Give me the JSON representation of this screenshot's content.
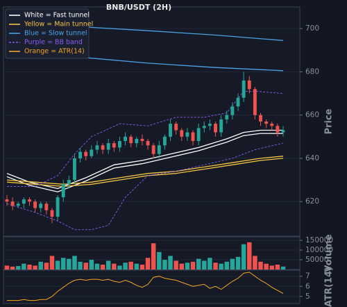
{
  "chart_data": [
    {
      "type": "candlestick",
      "title": "BNB/USDT (2H)",
      "ylabel": "Price",
      "ylim": [
        604,
        710
      ],
      "yticks": [
        620,
        640,
        660,
        680,
        700
      ],
      "grid": true,
      "up_color": "#26a69a",
      "down_color": "#ef5350",
      "legend": "upper left",
      "open": [
        621,
        620,
        618,
        619,
        621,
        620,
        617,
        619,
        616,
        613,
        622,
        628,
        630,
        640,
        643,
        641,
        644,
        646,
        644,
        647,
        645,
        648,
        650,
        647,
        649,
        648,
        646,
        642,
        646,
        650,
        656,
        653,
        650,
        652,
        648,
        654,
        655,
        656,
        652,
        658,
        660,
        664,
        668,
        676,
        672,
        660,
        657,
        656,
        655,
        652
      ],
      "high": [
        623,
        622,
        620,
        622,
        622,
        621,
        620,
        620,
        617,
        623,
        630,
        632,
        642,
        645,
        644,
        646,
        648,
        647,
        649,
        648,
        650,
        652,
        651,
        650,
        651,
        649,
        647,
        648,
        651,
        658,
        657,
        654,
        654,
        653,
        656,
        657,
        658,
        657,
        660,
        662,
        666,
        670,
        680,
        678,
        673,
        661,
        658,
        657,
        656,
        655
      ],
      "low": [
        618,
        616,
        617,
        617,
        618,
        615,
        615,
        614,
        610,
        611,
        620,
        626,
        628,
        638,
        639,
        640,
        642,
        642,
        642,
        643,
        643,
        646,
        645,
        645,
        646,
        644,
        640,
        640,
        644,
        648,
        651,
        648,
        648,
        646,
        646,
        652,
        653,
        650,
        650,
        656,
        658,
        662,
        666,
        670,
        658,
        655,
        654,
        653,
        650,
        650
      ],
      "close": [
        620,
        618,
        619,
        621,
        620,
        617,
        619,
        616,
        613,
        622,
        628,
        630,
        640,
        643,
        641,
        644,
        646,
        644,
        647,
        645,
        648,
        650,
        647,
        649,
        648,
        646,
        642,
        646,
        650,
        656,
        653,
        650,
        652,
        648,
        654,
        655,
        656,
        652,
        658,
        660,
        664,
        668,
        676,
        672,
        660,
        657,
        656,
        655,
        652,
        653
      ],
      "overlays": [
        {
          "name": "White = Fast tunnel",
          "color": "#ffffff",
          "dashed": false,
          "lines": [
            {
              "x": [
                0,
                4,
                9,
                14,
                19,
                24,
                29,
                34,
                39,
                42,
                45,
                49
              ],
              "values": [
                633,
                629,
                626,
                631,
                637,
                639,
                642,
                645,
                649,
                652,
                653,
                653
              ]
            },
            {
              "x": [
                0,
                4,
                9,
                14,
                19,
                24,
                29,
                34,
                39,
                42,
                45,
                49
              ],
              "values": [
                631.5,
                627.5,
                624.5,
                629.5,
                635.5,
                637.5,
                640.5,
                643.5,
                647.5,
                650.5,
                651.5,
                651.5
              ]
            }
          ]
        },
        {
          "name": "Yellow = Main tunnel",
          "color": "#f5c542",
          "dashed": false,
          "lines": [
            {
              "x": [
                0,
                5,
                10,
                15,
                20,
                25,
                30,
                35,
                40,
                45,
                49
              ],
              "values": [
                630,
                629,
                628,
                629,
                631,
                633,
                634,
                636,
                638,
                640,
                641
              ]
            },
            {
              "x": [
                0,
                5,
                10,
                15,
                20,
                25,
                30,
                35,
                40,
                45,
                49
              ],
              "values": [
                629,
                628,
                627,
                628,
                630,
                632,
                633,
                635,
                637,
                639,
                640
              ]
            }
          ]
        },
        {
          "name": "Blue = Slow tunnel",
          "color": "#4aa3e8",
          "dashed": false,
          "lines": [
            {
              "x": [
                0,
                12,
                25,
                37,
                49
              ],
              "values": [
                703.5,
                701,
                699,
                697,
                694.5
              ]
            },
            {
              "x": [
                0,
                12,
                25,
                37,
                49
              ],
              "values": [
                690,
                687,
                684,
                682,
                680.5
              ]
            }
          ]
        },
        {
          "name": "Purple = BB band",
          "color": "#8a5cf0",
          "dashed": true,
          "lines": [
            {
              "x": [
                0,
                5,
                9,
                12,
                15,
                20,
                25,
                30,
                35,
                39,
                42,
                44,
                49
              ],
              "values": [
                627,
                627,
                632,
                642,
                650,
                656,
                655,
                659,
                659,
                661,
                671,
                671,
                670
              ]
            },
            {
              "x": [
                0,
                5,
                9,
                12,
                15,
                18,
                21,
                25,
                30,
                35,
                40,
                44,
                49
              ],
              "values": [
                619,
                615,
                611,
                607,
                607,
                609,
                622,
                632,
                634,
                637,
                640,
                644,
                647
              ]
            }
          ]
        }
      ]
    },
    {
      "type": "bar",
      "ylabel": "Volume",
      "ylim": [
        0,
        168000
      ],
      "yticks": [
        50000,
        100000,
        150000
      ],
      "grid": true,
      "values": [
        20000,
        15000,
        18000,
        30000,
        25000,
        20000,
        40000,
        35000,
        70000,
        45000,
        60000,
        55000,
        70000,
        40000,
        35000,
        50000,
        30000,
        25000,
        45000,
        30000,
        20000,
        35000,
        40000,
        30000,
        25000,
        60000,
        135000,
        90000,
        50000,
        70000,
        45000,
        30000,
        35000,
        40000,
        55000,
        45000,
        60000,
        35000,
        30000,
        40000,
        55000,
        65000,
        130000,
        140000,
        70000,
        40000,
        30000,
        20000,
        25000,
        15000
      ]
    },
    {
      "type": "line",
      "ylabel": "ATR(14)",
      "ylim": [
        4.3,
        7.6
      ],
      "yticks": [
        5,
        6,
        7
      ],
      "grid": true,
      "series": [
        {
          "name": "Orange = ATR(14)",
          "color": "#f5a623",
          "values": [
            4.6,
            4.6,
            4.6,
            4.7,
            4.6,
            4.6,
            4.7,
            4.7,
            5.0,
            5.5,
            5.9,
            6.3,
            6.6,
            6.7,
            6.6,
            6.7,
            6.7,
            6.6,
            6.7,
            6.5,
            6.4,
            6.6,
            6.4,
            6.1,
            5.9,
            6.2,
            6.9,
            7.0,
            6.8,
            6.7,
            6.6,
            6.4,
            6.2,
            6.0,
            6.1,
            6.2,
            5.8,
            6.0,
            5.7,
            6.1,
            6.5,
            6.8,
            7.3,
            7.4,
            7.0,
            6.6,
            6.3,
            5.9,
            5.6,
            5.3
          ]
        }
      ]
    }
  ]
}
